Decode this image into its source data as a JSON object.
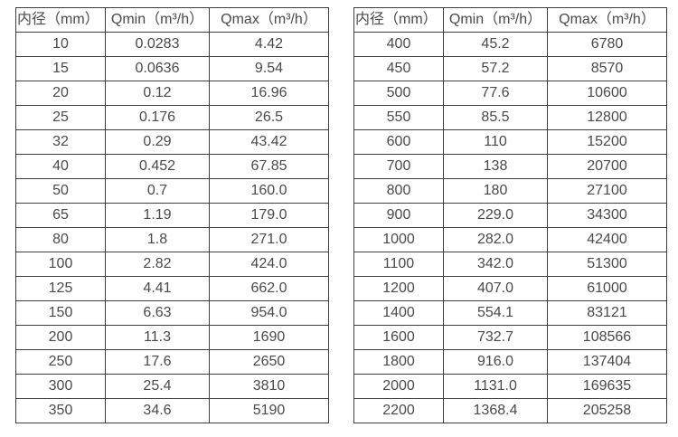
{
  "chart_data": [
    {
      "type": "table",
      "columns": [
        "内径（mm）",
        "Qmin（m³/h）",
        "Qmax（m³/h）"
      ],
      "rows": [
        [
          "10",
          "0.0283",
          "4.42"
        ],
        [
          "15",
          "0.0636",
          "9.54"
        ],
        [
          "20",
          "0.12",
          "16.96"
        ],
        [
          "25",
          "0.176",
          "26.5"
        ],
        [
          "32",
          "0.29",
          "43.42"
        ],
        [
          "40",
          "0.452",
          "67.85"
        ],
        [
          "50",
          "0.7",
          "160.0"
        ],
        [
          "65",
          "1.19",
          "179.0"
        ],
        [
          "80",
          "1.8",
          "271.0"
        ],
        [
          "100",
          "2.82",
          "424.0"
        ],
        [
          "125",
          "4.41",
          "662.0"
        ],
        [
          "150",
          "6.63",
          "954.0"
        ],
        [
          "200",
          "11.3",
          "1690"
        ],
        [
          "250",
          "17.6",
          "2650"
        ],
        [
          "300",
          "25.4",
          "3810"
        ],
        [
          "350",
          "34.6",
          "5190"
        ]
      ]
    },
    {
      "type": "table",
      "columns": [
        "内径（mm）",
        "Qmin（m³/h）",
        "Qmax（m³/h）"
      ],
      "rows": [
        [
          "400",
          "45.2",
          "6780"
        ],
        [
          "450",
          "57.2",
          "8570"
        ],
        [
          "500",
          "77.6",
          "10600"
        ],
        [
          "550",
          "85.5",
          "12800"
        ],
        [
          "600",
          "110",
          "15200"
        ],
        [
          "700",
          "138",
          "20700"
        ],
        [
          "800",
          "180",
          "27100"
        ],
        [
          "900",
          "229.0",
          "34300"
        ],
        [
          "1000",
          "282.0",
          "42400"
        ],
        [
          "1100",
          "342.0",
          "51300"
        ],
        [
          "1200",
          "407.0",
          "61000"
        ],
        [
          "1400",
          "554.1",
          "83121"
        ],
        [
          "1600",
          "732.7",
          "108566"
        ],
        [
          "1800",
          "916.0",
          "137404"
        ],
        [
          "2000",
          "1131.0",
          "169635"
        ],
        [
          "2200",
          "1368.4",
          "205258"
        ]
      ]
    }
  ],
  "colors": {
    "border": "#3f3f3f",
    "text": "#4a4a4a",
    "background": "#ffffff"
  }
}
